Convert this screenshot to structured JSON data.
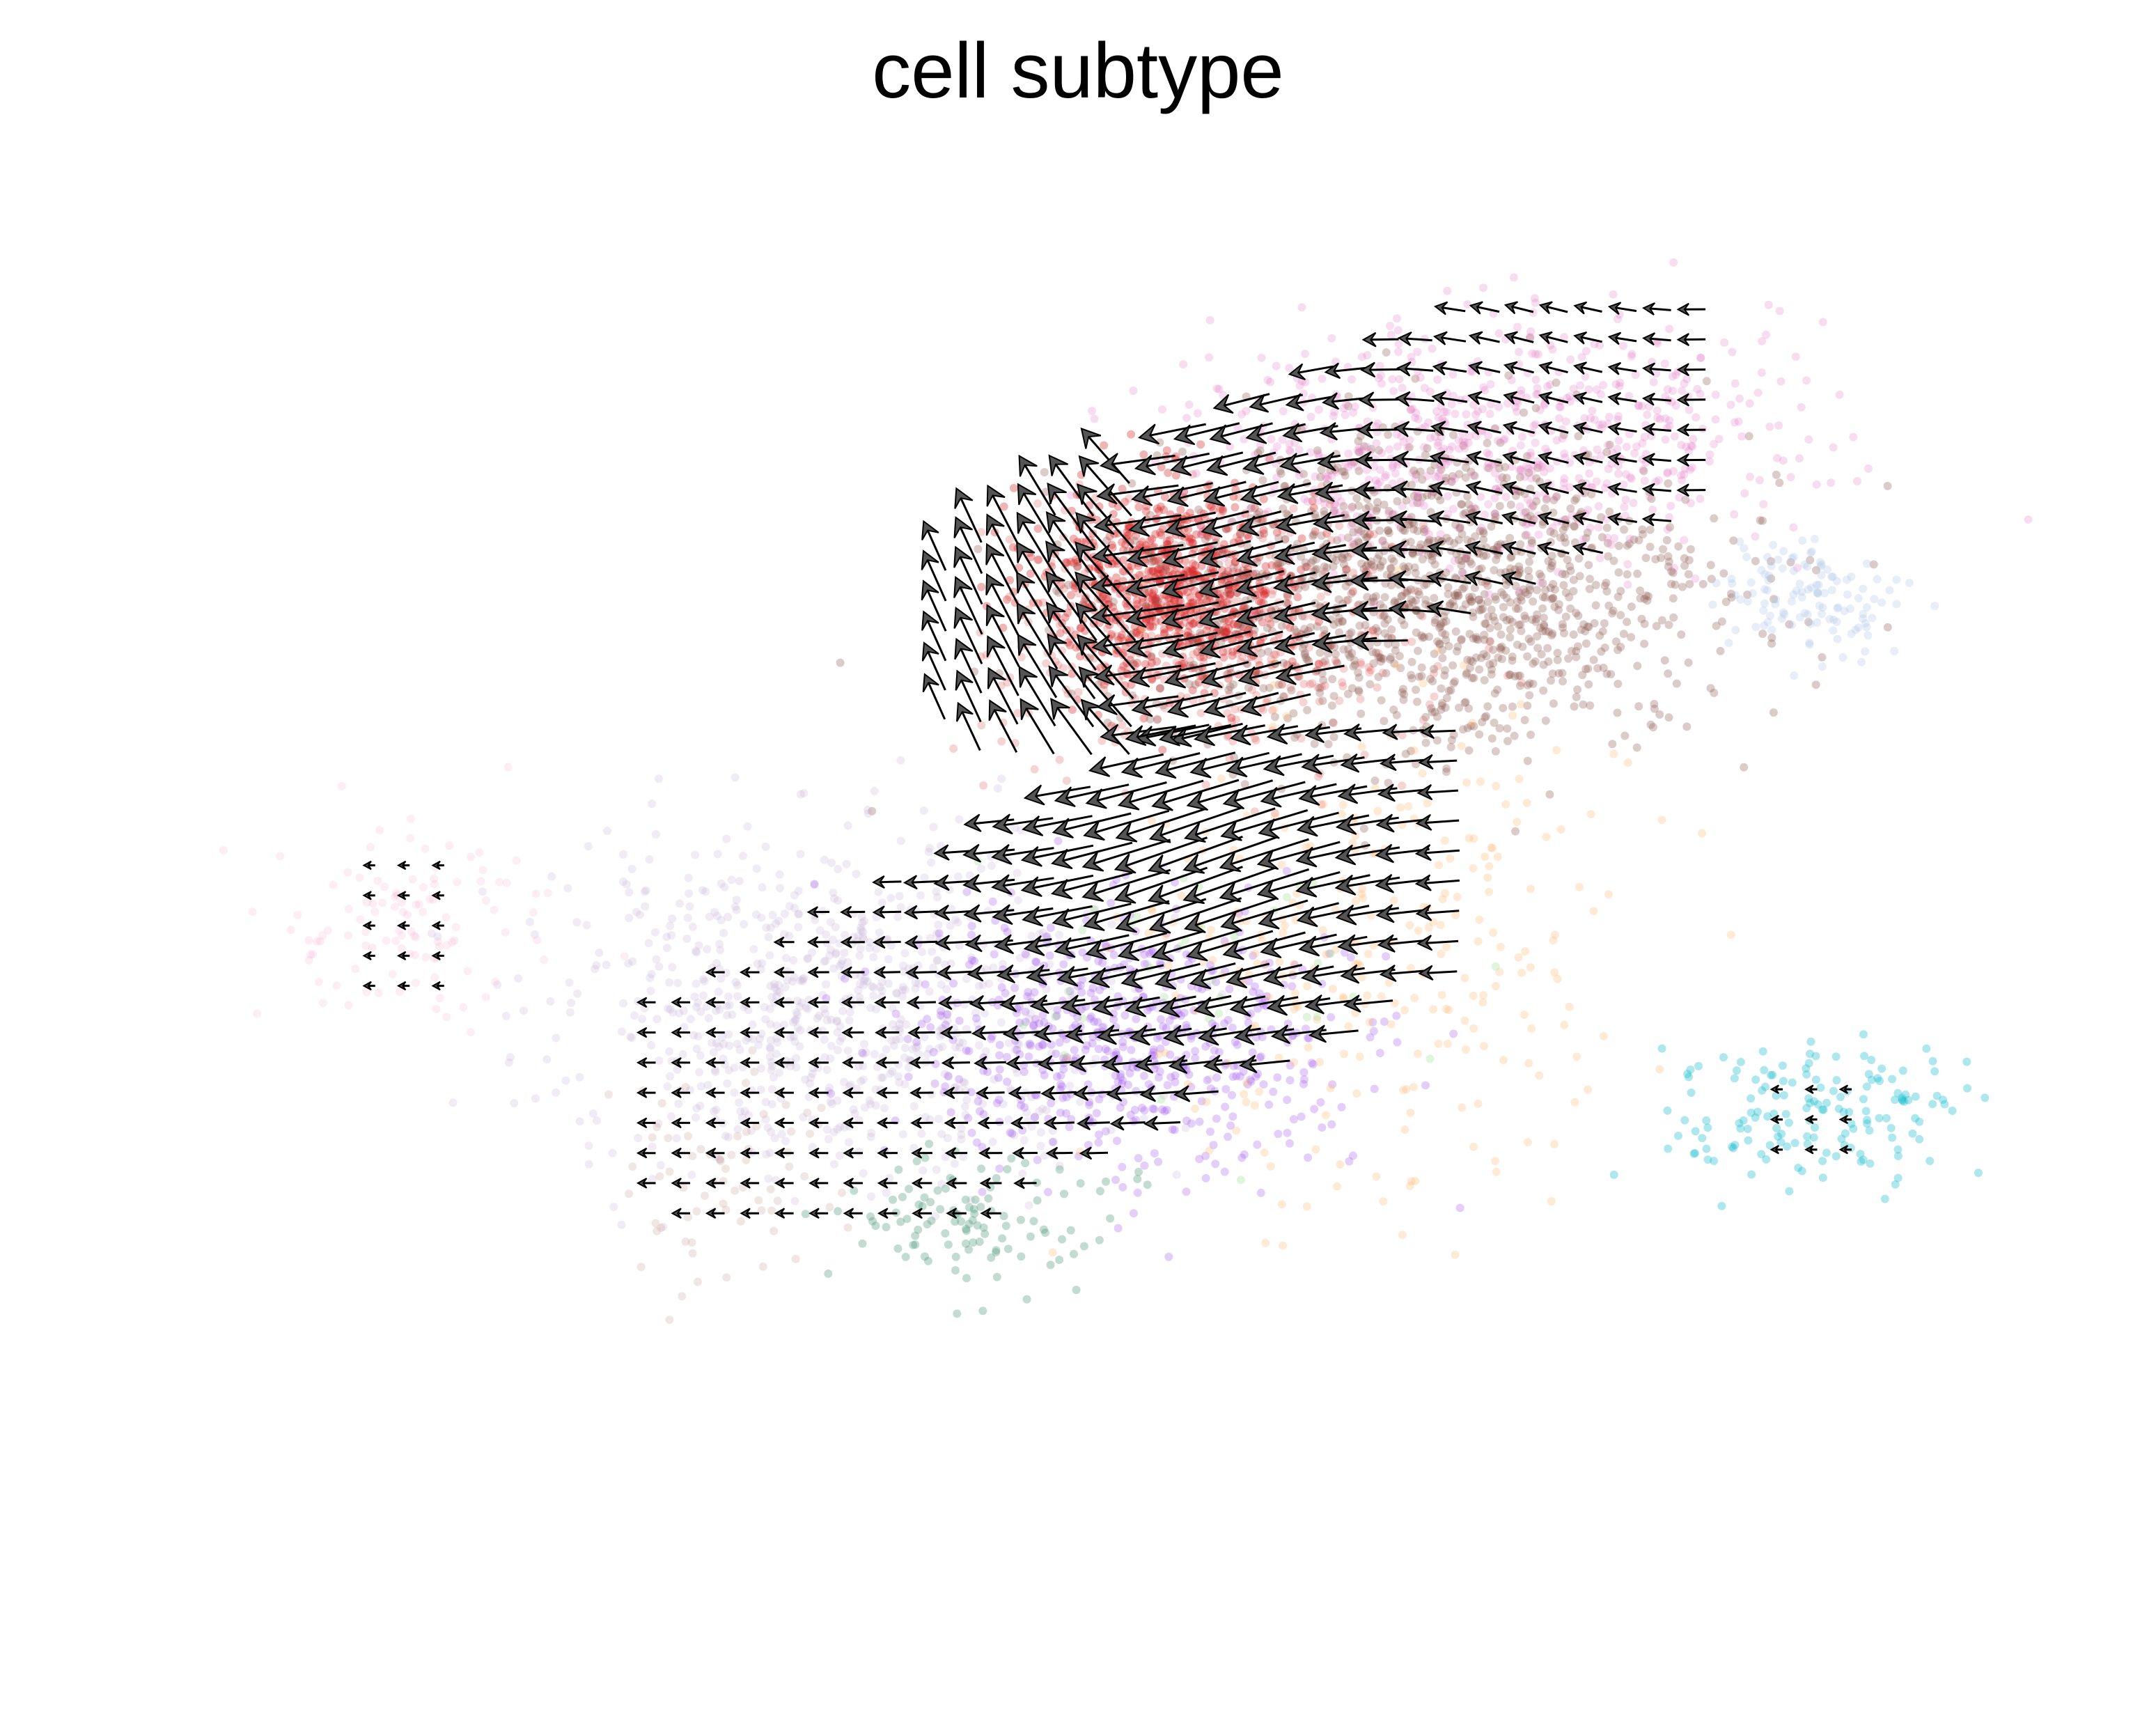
{
  "chart_data": {
    "type": "scatter",
    "subtype": "velocity-embedding-stream",
    "title": "cell subtype",
    "xlabel": "",
    "ylabel": "",
    "axes_visible": false,
    "grid": false,
    "legend": "none",
    "xlim": [
      -10,
      10
    ],
    "ylim": [
      -8,
      8
    ],
    "colors": {
      "red": "#d62728",
      "brown": "#8c564b",
      "pink": "#e377c2",
      "lavender": "#c5b0d5",
      "purple": "#9467bd",
      "violet": "#a55cf0",
      "peach": "#ffbb78",
      "teal": "#17becf",
      "green": "#2ca02c",
      "seagreen": "#4f9a7e",
      "lightblue": "#aec7e8",
      "rose": "#f7b6d2",
      "taupe": "#c49c94",
      "lightgreen": "#98df8a",
      "arrow": "#000000",
      "arrow_fill": "#555555"
    },
    "clusters": [
      {
        "color": "red",
        "cx": 0.9,
        "cy": 3.4,
        "sx": 0.7,
        "sy": 0.55,
        "n": 900,
        "alpha": 0.35
      },
      {
        "color": "red",
        "cx": 1.3,
        "cy": 2.8,
        "sx": 1.1,
        "sy": 0.7,
        "n": 400,
        "alpha": 0.2
      },
      {
        "color": "brown",
        "cx": 3.6,
        "cy": 3.3,
        "sx": 1.5,
        "sy": 0.85,
        "n": 1300,
        "alpha": 0.3
      },
      {
        "color": "pink",
        "cx": 4.2,
        "cy": 5.0,
        "sx": 1.5,
        "sy": 0.65,
        "n": 700,
        "alpha": 0.25
      },
      {
        "color": "lavender",
        "cx": -2.6,
        "cy": -1.2,
        "sx": 1.5,
        "sy": 0.9,
        "n": 800,
        "alpha": 0.25
      },
      {
        "color": "violet",
        "cx": 0.4,
        "cy": -1.6,
        "sx": 1.1,
        "sy": 0.7,
        "n": 600,
        "alpha": 0.3
      },
      {
        "color": "peach",
        "cx": 3.0,
        "cy": -0.6,
        "sx": 1.3,
        "sy": 1.4,
        "n": 300,
        "alpha": 0.3
      },
      {
        "color": "teal",
        "cx": 7.6,
        "cy": -2.4,
        "sx": 0.8,
        "sy": 0.4,
        "n": 160,
        "alpha": 0.35
      },
      {
        "color": "lightblue",
        "cx": 7.5,
        "cy": 3.3,
        "sx": 0.45,
        "sy": 0.3,
        "n": 120,
        "alpha": 0.3
      },
      {
        "color": "rose",
        "cx": -7.1,
        "cy": -0.3,
        "sx": 0.8,
        "sy": 0.55,
        "n": 110,
        "alpha": 0.25
      },
      {
        "color": "seagreen",
        "cx": -1.2,
        "cy": -3.6,
        "sx": 0.7,
        "sy": 0.45,
        "n": 110,
        "alpha": 0.35
      },
      {
        "color": "taupe",
        "cx": -3.9,
        "cy": -3.1,
        "sx": 0.6,
        "sy": 0.6,
        "n": 70,
        "alpha": 0.25
      },
      {
        "color": "lightgreen",
        "cx": 0.8,
        "cy": -1.0,
        "sx": 1.2,
        "sy": 0.8,
        "n": 40,
        "alpha": 0.3
      }
    ],
    "arrow_regions": [
      {
        "name": "upper",
        "x": [
          -1.6,
          6.4
        ],
        "y": [
          1.8,
          6.5
        ],
        "band": {
          "cx": 2.4,
          "cy": 4.1,
          "angle": 0.45,
          "len": 4.6,
          "wid": 1.6
        }
      },
      {
        "name": "middle",
        "x": [
          -4.6,
          3.8
        ],
        "y": [
          -3.5,
          2.0
        ],
        "band": {
          "cx": 0.0,
          "cy": -0.8,
          "angle": 0.5,
          "len": 5.2,
          "wid": 1.9
        }
      },
      {
        "name": "left",
        "x": [
          -7.5,
          -6.5
        ],
        "y": [
          -1.0,
          0.5
        ]
      },
      {
        "name": "right",
        "x": [
          7.2,
          8.2
        ],
        "y": [
          -2.8,
          -2.0
        ]
      }
    ]
  }
}
